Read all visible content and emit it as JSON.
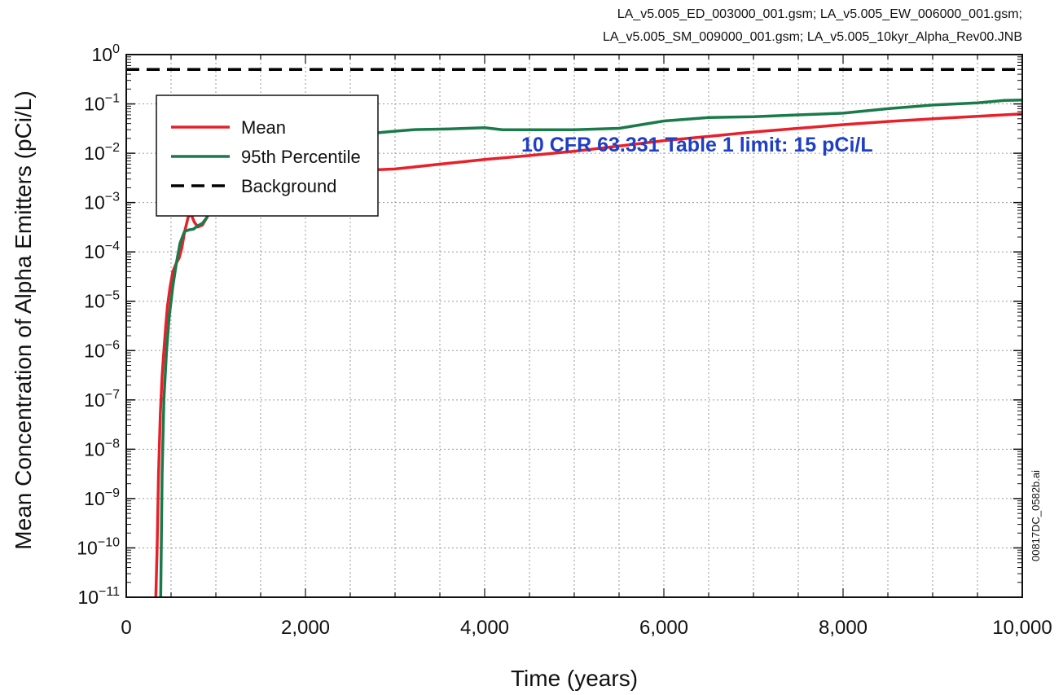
{
  "chart_data": {
    "type": "line",
    "title": "",
    "file_note_line1": "LA_v5.005_ED_003000_001.gsm; LA_v5.005_EW_006000_001.gsm;",
    "file_note_line2": "LA_v5.005_SM_009000_001.gsm; LA_v5.005_10kyr_Alpha_Rev00.JNB",
    "xlabel": "Time (years)",
    "ylabel": "Mean Concentration of Alpha Emitters (pCi/L)",
    "xlim": [
      0,
      10000
    ],
    "ylim_log10": [
      -11,
      0
    ],
    "yscale": "log",
    "grid": true,
    "x_ticks": [
      0,
      2000,
      4000,
      6000,
      8000,
      10000
    ],
    "x_tick_labels": [
      "0",
      "2,000",
      "4,000",
      "6,000",
      "8,000",
      "10,000"
    ],
    "y_tick_exponents": [
      0,
      -1,
      -2,
      -3,
      -4,
      -5,
      -6,
      -7,
      -8,
      -9,
      -10,
      -11
    ],
    "y_tick_base": "10",
    "legend_position": "top-left",
    "annotation": "10 CFR 63.331 Table 1 limit:  15 pCi/L",
    "side_note": "00817DC_0582b.ai",
    "series": [
      {
        "name": "Mean",
        "color": "#e8202a",
        "dash": "solid",
        "points": [
          [
            330,
            1e-11
          ],
          [
            345,
            1e-10
          ],
          [
            360,
            3e-09
          ],
          [
            380,
            5e-08
          ],
          [
            400,
            3e-07
          ],
          [
            420,
            1e-06
          ],
          [
            440,
            3e-06
          ],
          [
            460,
            8e-06
          ],
          [
            490,
            2e-05
          ],
          [
            520,
            4e-05
          ],
          [
            560,
            6e-05
          ],
          [
            590,
            7.5e-05
          ],
          [
            620,
            0.00012
          ],
          [
            650,
            0.00025
          ],
          [
            690,
            0.0005
          ],
          [
            720,
            0.0006
          ],
          [
            760,
            0.0004
          ],
          [
            800,
            0.00032
          ],
          [
            850,
            0.00035
          ],
          [
            900,
            0.0005
          ],
          [
            950,
            0.0008
          ],
          [
            1000,
            0.0013
          ],
          [
            1050,
            0.0018
          ],
          [
            1100,
            0.0015
          ],
          [
            1200,
            0.0016
          ],
          [
            1350,
            0.0018
          ],
          [
            1500,
            0.0019
          ],
          [
            1650,
            0.002
          ],
          [
            1750,
            0.0025
          ],
          [
            1850,
            0.0035
          ],
          [
            1950,
            0.0055
          ],
          [
            2000,
            0.009
          ],
          [
            2050,
            0.006
          ],
          [
            2150,
            0.0036
          ],
          [
            2300,
            0.004
          ],
          [
            2500,
            0.0044
          ],
          [
            3000,
            0.0048
          ],
          [
            3500,
            0.006
          ],
          [
            4000,
            0.0075
          ],
          [
            4500,
            0.009
          ],
          [
            5000,
            0.011
          ],
          [
            5500,
            0.014
          ],
          [
            6000,
            0.018
          ],
          [
            6500,
            0.022
          ],
          [
            7000,
            0.027
          ],
          [
            7500,
            0.032
          ],
          [
            8000,
            0.038
          ],
          [
            8500,
            0.044
          ],
          [
            9000,
            0.05
          ],
          [
            9500,
            0.056
          ],
          [
            10000,
            0.063
          ]
        ]
      },
      {
        "name": "95th Percentile",
        "color": "#1a7a4a",
        "dash": "solid",
        "points": [
          [
            385,
            1e-11
          ],
          [
            400,
            3e-09
          ],
          [
            420,
            1e-07
          ],
          [
            450,
            1e-06
          ],
          [
            480,
            5e-06
          ],
          [
            520,
            2e-05
          ],
          [
            560,
            6e-05
          ],
          [
            600,
            0.00015
          ],
          [
            650,
            0.00026
          ],
          [
            700,
            0.00028
          ],
          [
            750,
            0.00029
          ],
          [
            800,
            0.00034
          ],
          [
            850,
            0.00038
          ],
          [
            900,
            0.0005
          ],
          [
            950,
            0.0008
          ],
          [
            1000,
            0.0016
          ],
          [
            1050,
            0.0022
          ],
          [
            1100,
            0.0035
          ],
          [
            1150,
            0.004
          ],
          [
            1200,
            0.005
          ],
          [
            1250,
            0.007
          ],
          [
            1300,
            0.0074
          ],
          [
            1400,
            0.008
          ],
          [
            1500,
            0.01
          ],
          [
            1550,
            0.0105
          ],
          [
            1600,
            0.009
          ],
          [
            1700,
            0.0075
          ],
          [
            1800,
            0.007
          ],
          [
            1900,
            0.0065
          ],
          [
            2000,
            0.014
          ],
          [
            2100,
            0.015
          ],
          [
            2200,
            0.017
          ],
          [
            2400,
            0.019
          ],
          [
            2600,
            0.024
          ],
          [
            2800,
            0.026
          ],
          [
            3000,
            0.028
          ],
          [
            3200,
            0.03
          ],
          [
            3600,
            0.031
          ],
          [
            4000,
            0.033
          ],
          [
            4200,
            0.03
          ],
          [
            4600,
            0.03
          ],
          [
            5000,
            0.03
          ],
          [
            5500,
            0.032
          ],
          [
            6000,
            0.045
          ],
          [
            6500,
            0.053
          ],
          [
            7000,
            0.055
          ],
          [
            7500,
            0.06
          ],
          [
            8000,
            0.065
          ],
          [
            8500,
            0.08
          ],
          [
            9000,
            0.095
          ],
          [
            9500,
            0.105
          ],
          [
            9800,
            0.118
          ],
          [
            10000,
            0.12
          ]
        ]
      },
      {
        "name": "Background",
        "color": "#000000",
        "dash": "dashed",
        "points": [
          [
            0,
            0.5
          ],
          [
            10000,
            0.5
          ]
        ]
      }
    ]
  }
}
